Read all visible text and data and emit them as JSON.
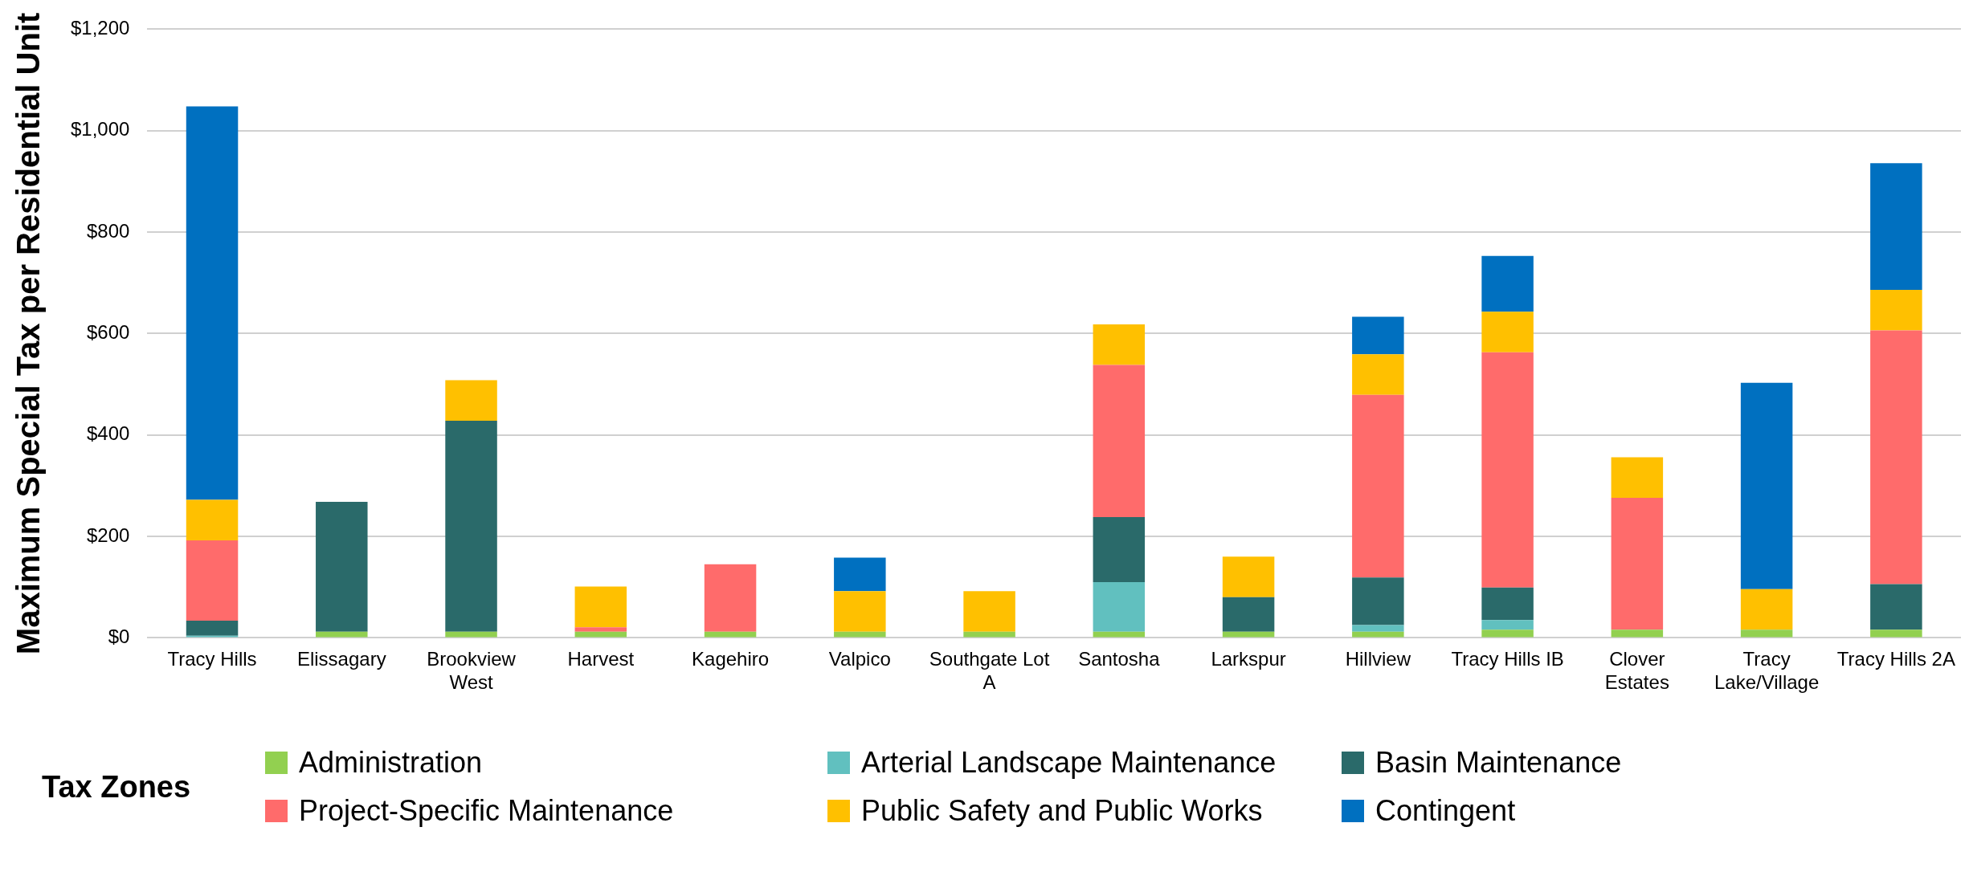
{
  "chart_data": {
    "type": "bar",
    "stacked": true,
    "ylabel": "Maximum Special Tax per Residential Unit",
    "legend_title": "Tax Zones",
    "legend": "bottom",
    "grid": "y",
    "categories": [
      "Tracy Hills",
      "Elissagary",
      "Brookview West",
      "Harvest",
      "Kagehiro",
      "Valpico",
      "Southgate Lot A",
      "Santosha",
      "Larkspur",
      "Hillview",
      "Tracy Hills IB",
      "Clover Estates",
      "Tracy Lake/Village",
      "Tracy Hills 2A"
    ],
    "ylim": [
      0,
      1200
    ],
    "yticks": [
      {
        "value": 0,
        "label": "$0"
      },
      {
        "value": 200,
        "label": "$200"
      },
      {
        "value": 400,
        "label": "$400"
      },
      {
        "value": 600,
        "label": "$600"
      },
      {
        "value": 800,
        "label": "$800"
      },
      {
        "value": 1000,
        "label": "$1,000"
      },
      {
        "value": 1200,
        "label": "$1,200"
      }
    ],
    "series": [
      {
        "name": "Administration",
        "color": "#92d050",
        "values": [
          0,
          12,
          12,
          12,
          12,
          12,
          12,
          12,
          12,
          12,
          16,
          16,
          16,
          16
        ]
      },
      {
        "name": "Arterial Landscape Maintenance",
        "color": "#61c0bf",
        "values": [
          4,
          0,
          0,
          0,
          0,
          0,
          0,
          98,
          0,
          13,
          19,
          0,
          0,
          0
        ]
      },
      {
        "name": "Basin Maintenance",
        "color": "#2a6a6a",
        "values": [
          30,
          256,
          416,
          0,
          0,
          0,
          0,
          128,
          68,
          94,
          64,
          0,
          0,
          90
        ]
      },
      {
        "name": "Project-Specific Maintenance",
        "color": "#ff6b6b",
        "values": [
          158,
          0,
          0,
          9,
          133,
          0,
          0,
          300,
          0,
          360,
          464,
          260,
          0,
          500
        ]
      },
      {
        "name": "Public Safety and Public Works",
        "color": "#ffc000",
        "values": [
          80,
          0,
          80,
          80,
          0,
          80,
          80,
          80,
          80,
          80,
          80,
          80,
          80,
          80
        ]
      },
      {
        "name": "Contingent",
        "color": "#0070c0",
        "values": [
          776,
          0,
          0,
          0,
          0,
          66,
          0,
          0,
          0,
          74,
          110,
          0,
          407,
          250
        ]
      }
    ]
  }
}
